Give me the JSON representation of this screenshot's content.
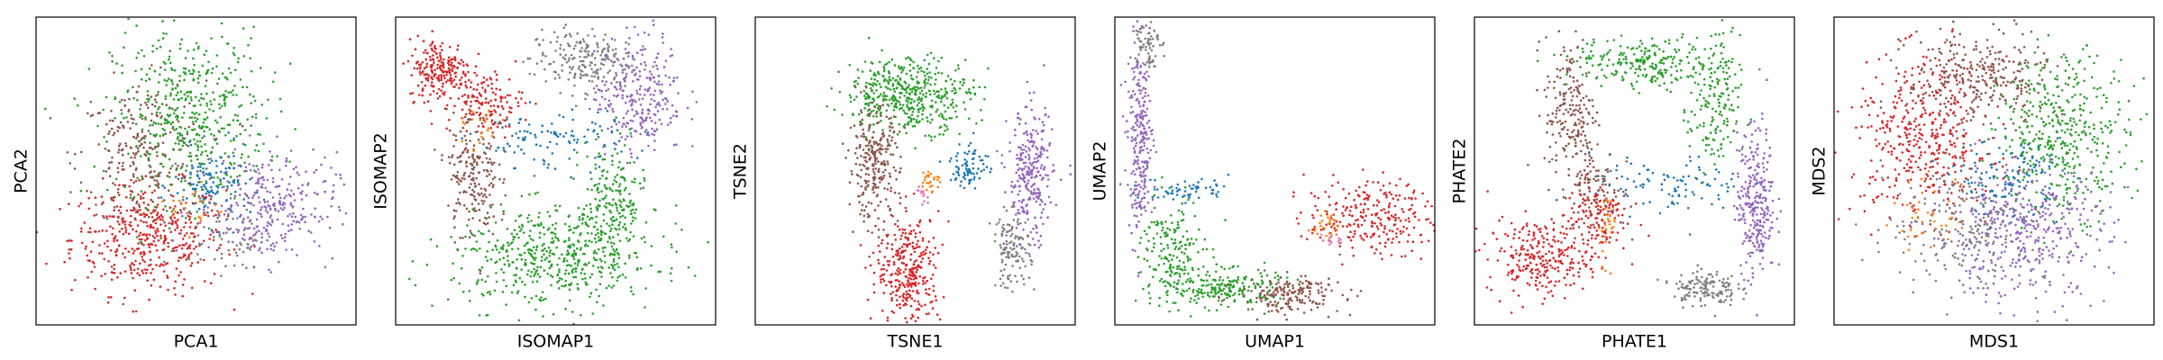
{
  "figure": {
    "panels": [
      {
        "xlabel": "PCA1",
        "ylabel": "PCA2"
      },
      {
        "xlabel": "ISOMAP1",
        "ylabel": "ISOMAP2"
      },
      {
        "xlabel": "TSNE1",
        "ylabel": "TSNE2"
      },
      {
        "xlabel": "UMAP1",
        "ylabel": "UMAP2"
      },
      {
        "xlabel": "PHATE1",
        "ylabel": "PHATE2"
      },
      {
        "xlabel": "MDS1",
        "ylabel": "MDS2"
      }
    ]
  },
  "chart_data": [
    {
      "type": "scatter",
      "xlabel": "PCA1",
      "ylabel": "PCA2",
      "xlim": [
        0,
        100
      ],
      "ylim": [
        0,
        100
      ],
      "ticks": "none",
      "grid": false,
      "series": [
        {
          "color": "#d62728",
          "clusters": [
            {
              "cx": 35,
              "cy": 28,
              "sx": 12,
              "sy": 9,
              "n": 420
            }
          ]
        },
        {
          "color": "#8c564b",
          "clusters": [
            {
              "cx": 33,
              "cy": 55,
              "sx": 10,
              "sy": 12,
              "n": 260
            }
          ]
        },
        {
          "color": "#2ca02c",
          "clusters": [
            {
              "cx": 48,
              "cy": 68,
              "sx": 12,
              "sy": 14,
              "n": 500
            }
          ]
        },
        {
          "color": "#1f77b4",
          "clusters": [
            {
              "cx": 55,
              "cy": 45,
              "sx": 6,
              "sy": 6,
              "n": 120
            }
          ]
        },
        {
          "color": "#9467bd",
          "clusters": [
            {
              "cx": 72,
              "cy": 38,
              "sx": 11,
              "sy": 9,
              "n": 320
            }
          ]
        },
        {
          "color": "#7f7f7f",
          "clusters": [
            {
              "cx": 60,
              "cy": 28,
              "sx": 6,
              "sy": 5,
              "n": 50
            }
          ]
        },
        {
          "color": "#ff7f0e",
          "clusters": [
            {
              "cx": 50,
              "cy": 38,
              "sx": 4,
              "sy": 4,
              "n": 25
            }
          ]
        }
      ]
    },
    {
      "type": "scatter",
      "xlabel": "ISOMAP1",
      "ylabel": "ISOMAP2",
      "xlim": [
        0,
        100
      ],
      "ylim": [
        0,
        100
      ],
      "ticks": "none",
      "grid": false,
      "series": [
        {
          "color": "#d62728",
          "clusters": [
            {
              "cx": 14,
              "cy": 83,
              "sx": 5,
              "sy": 5,
              "n": 220
            },
            {
              "cx": 28,
              "cy": 72,
              "sx": 6,
              "sy": 5,
              "n": 140
            }
          ]
        },
        {
          "color": "#7f7f7f",
          "clusters": [
            {
              "cx": 58,
              "cy": 86,
              "sx": 8,
              "sy": 5,
              "n": 200
            }
          ]
        },
        {
          "color": "#9467bd",
          "clusters": [
            {
              "cx": 76,
              "cy": 75,
              "sx": 7,
              "sy": 10,
              "n": 280
            }
          ]
        },
        {
          "color": "#8c564b",
          "clusters": [
            {
              "cx": 24,
              "cy": 48,
              "sx": 4,
              "sy": 10,
              "n": 200
            }
          ]
        },
        {
          "color": "#2ca02c",
          "clusters": [
            {
              "cx": 50,
              "cy": 22,
              "sx": 16,
              "sy": 8,
              "n": 520
            },
            {
              "cx": 68,
              "cy": 40,
              "sx": 5,
              "sy": 10,
              "n": 200
            }
          ]
        },
        {
          "color": "#1f77b4",
          "clusters": [
            {
              "cx": 48,
              "cy": 60,
              "sx": 12,
              "sy": 5,
              "n": 110
            }
          ]
        },
        {
          "color": "#ff7f0e",
          "clusters": [
            {
              "cx": 27,
              "cy": 63,
              "sx": 3,
              "sy": 3,
              "n": 20
            }
          ]
        }
      ]
    },
    {
      "type": "scatter",
      "xlabel": "TSNE1",
      "ylabel": "TSNE2",
      "xlim": [
        0,
        100
      ],
      "ylim": [
        0,
        100
      ],
      "ticks": "none",
      "grid": false,
      "series": [
        {
          "color": "#2ca02c",
          "clusters": [
            {
              "cx": 48,
              "cy": 75,
              "sx": 10,
              "sy": 6,
              "n": 460
            }
          ]
        },
        {
          "color": "#8c564b",
          "clusters": [
            {
              "cx": 37,
              "cy": 52,
              "sx": 4,
              "sy": 9,
              "n": 260
            }
          ]
        },
        {
          "color": "#d62728",
          "clusters": [
            {
              "cx": 48,
              "cy": 18,
              "sx": 5,
              "sy": 9,
              "n": 320
            }
          ]
        },
        {
          "color": "#9467bd",
          "clusters": [
            {
              "cx": 86,
              "cy": 48,
              "sx": 3.5,
              "sy": 11,
              "n": 280
            }
          ]
        },
        {
          "color": "#7f7f7f",
          "clusters": [
            {
              "cx": 80,
              "cy": 24,
              "sx": 3,
              "sy": 6,
              "n": 120
            }
          ]
        },
        {
          "color": "#1f77b4",
          "clusters": [
            {
              "cx": 67,
              "cy": 52,
              "sx": 3,
              "sy": 4,
              "n": 80
            }
          ]
        },
        {
          "color": "#ff7f0e",
          "clusters": [
            {
              "cx": 55,
              "cy": 47,
              "sx": 1.5,
              "sy": 2,
              "n": 25
            }
          ]
        },
        {
          "color": "#e377c2",
          "clusters": [
            {
              "cx": 52,
              "cy": 42,
              "sx": 1.5,
              "sy": 2,
              "n": 12
            }
          ]
        }
      ]
    },
    {
      "type": "scatter",
      "xlabel": "UMAP1",
      "ylabel": "UMAP2",
      "xlim": [
        0,
        100
      ],
      "ylim": [
        0,
        100
      ],
      "ticks": "none",
      "grid": false,
      "series": [
        {
          "color": "#9467bd",
          "clusters": [
            {
              "cx": 8,
              "cy": 60,
              "sx": 2,
              "sy": 15,
              "n": 260
            }
          ]
        },
        {
          "color": "#7f7f7f",
          "clusters": [
            {
              "cx": 10,
              "cy": 92,
              "sx": 2,
              "sy": 4,
              "n": 60
            }
          ]
        },
        {
          "color": "#2ca02c",
          "clusters": [
            {
              "cx": 18,
              "cy": 22,
              "sx": 5,
              "sy": 10,
              "n": 200
            },
            {
              "cx": 35,
              "cy": 12,
              "sx": 8,
              "sy": 3,
              "n": 200
            }
          ]
        },
        {
          "color": "#8c564b",
          "clusters": [
            {
              "cx": 55,
              "cy": 10,
              "sx": 8,
              "sy": 3,
              "n": 180
            }
          ]
        },
        {
          "color": "#d62728",
          "clusters": [
            {
              "cx": 80,
              "cy": 35,
              "sx": 10,
              "sy": 6,
              "n": 260
            }
          ]
        },
        {
          "color": "#1f77b4",
          "clusters": [
            {
              "cx": 22,
              "cy": 44,
              "sx": 7,
              "sy": 2,
              "n": 60
            }
          ]
        },
        {
          "color": "#ff7f0e",
          "clusters": [
            {
              "cx": 66,
              "cy": 32,
              "sx": 2,
              "sy": 2,
              "n": 25
            }
          ]
        },
        {
          "color": "#e377c2",
          "clusters": [
            {
              "cx": 68,
              "cy": 28,
              "sx": 1.5,
              "sy": 1.5,
              "n": 12
            }
          ]
        }
      ]
    },
    {
      "type": "scatter",
      "xlabel": "PHATE1",
      "ylabel": "PHATE2",
      "xlim": [
        0,
        100
      ],
      "ylim": [
        0,
        100
      ],
      "ticks": "none",
      "grid": false,
      "series": [
        {
          "color": "#2ca02c",
          "clusters": [
            {
              "cx": 55,
              "cy": 85,
              "sx": 12,
              "sy": 4,
              "n": 240
            },
            {
              "cx": 75,
              "cy": 70,
              "sx": 4,
              "sy": 12,
              "n": 160
            }
          ]
        },
        {
          "color": "#8c564b",
          "clusters": [
            {
              "cx": 30,
              "cy": 70,
              "sx": 4,
              "sy": 12,
              "n": 200
            },
            {
              "cx": 38,
              "cy": 45,
              "sx": 4,
              "sy": 8,
              "n": 100
            }
          ]
        },
        {
          "color": "#d62728",
          "clusters": [
            {
              "cx": 20,
              "cy": 22,
              "sx": 8,
              "sy": 6,
              "n": 260
            },
            {
              "cx": 38,
              "cy": 35,
              "sx": 5,
              "sy": 6,
              "n": 120
            }
          ]
        },
        {
          "color": "#9467bd",
          "clusters": [
            {
              "cx": 88,
              "cy": 40,
              "sx": 3,
              "sy": 12,
              "n": 280
            }
          ]
        },
        {
          "color": "#7f7f7f",
          "clusters": [
            {
              "cx": 72,
              "cy": 12,
              "sx": 5,
              "sy": 3,
              "n": 140
            }
          ]
        },
        {
          "color": "#1f77b4",
          "clusters": [
            {
              "cx": 60,
              "cy": 45,
              "sx": 12,
              "sy": 5,
              "n": 100
            }
          ]
        },
        {
          "color": "#ff7f0e",
          "clusters": [
            {
              "cx": 42,
              "cy": 33,
              "sx": 1.5,
              "sy": 6,
              "n": 30
            }
          ]
        }
      ]
    },
    {
      "type": "scatter",
      "xlabel": "MDS1",
      "ylabel": "MDS2",
      "xlim": [
        0,
        100
      ],
      "ylim": [
        0,
        100
      ],
      "ticks": "none",
      "grid": false,
      "series": [
        {
          "color": "#d62728",
          "clusters": [
            {
              "cx": 28,
              "cy": 60,
              "sx": 11,
              "sy": 13,
              "n": 420
            }
          ]
        },
        {
          "color": "#8c564b",
          "clusters": [
            {
              "cx": 45,
              "cy": 80,
              "sx": 11,
              "sy": 8,
              "n": 300
            }
          ]
        },
        {
          "color": "#2ca02c",
          "clusters": [
            {
              "cx": 72,
              "cy": 62,
              "sx": 10,
              "sy": 13,
              "n": 420
            }
          ]
        },
        {
          "color": "#9467bd",
          "clusters": [
            {
              "cx": 58,
              "cy": 30,
              "sx": 14,
              "sy": 11,
              "n": 420
            }
          ]
        },
        {
          "color": "#7f7f7f",
          "clusters": [
            {
              "cx": 42,
              "cy": 32,
              "sx": 13,
              "sy": 10,
              "n": 200
            }
          ]
        },
        {
          "color": "#1f77b4",
          "clusters": [
            {
              "cx": 55,
              "cy": 48,
              "sx": 8,
              "sy": 6,
              "n": 120
            }
          ]
        },
        {
          "color": "#ff7f0e",
          "clusters": [
            {
              "cx": 30,
              "cy": 35,
              "sx": 6,
              "sy": 6,
              "n": 40
            }
          ]
        }
      ]
    }
  ]
}
